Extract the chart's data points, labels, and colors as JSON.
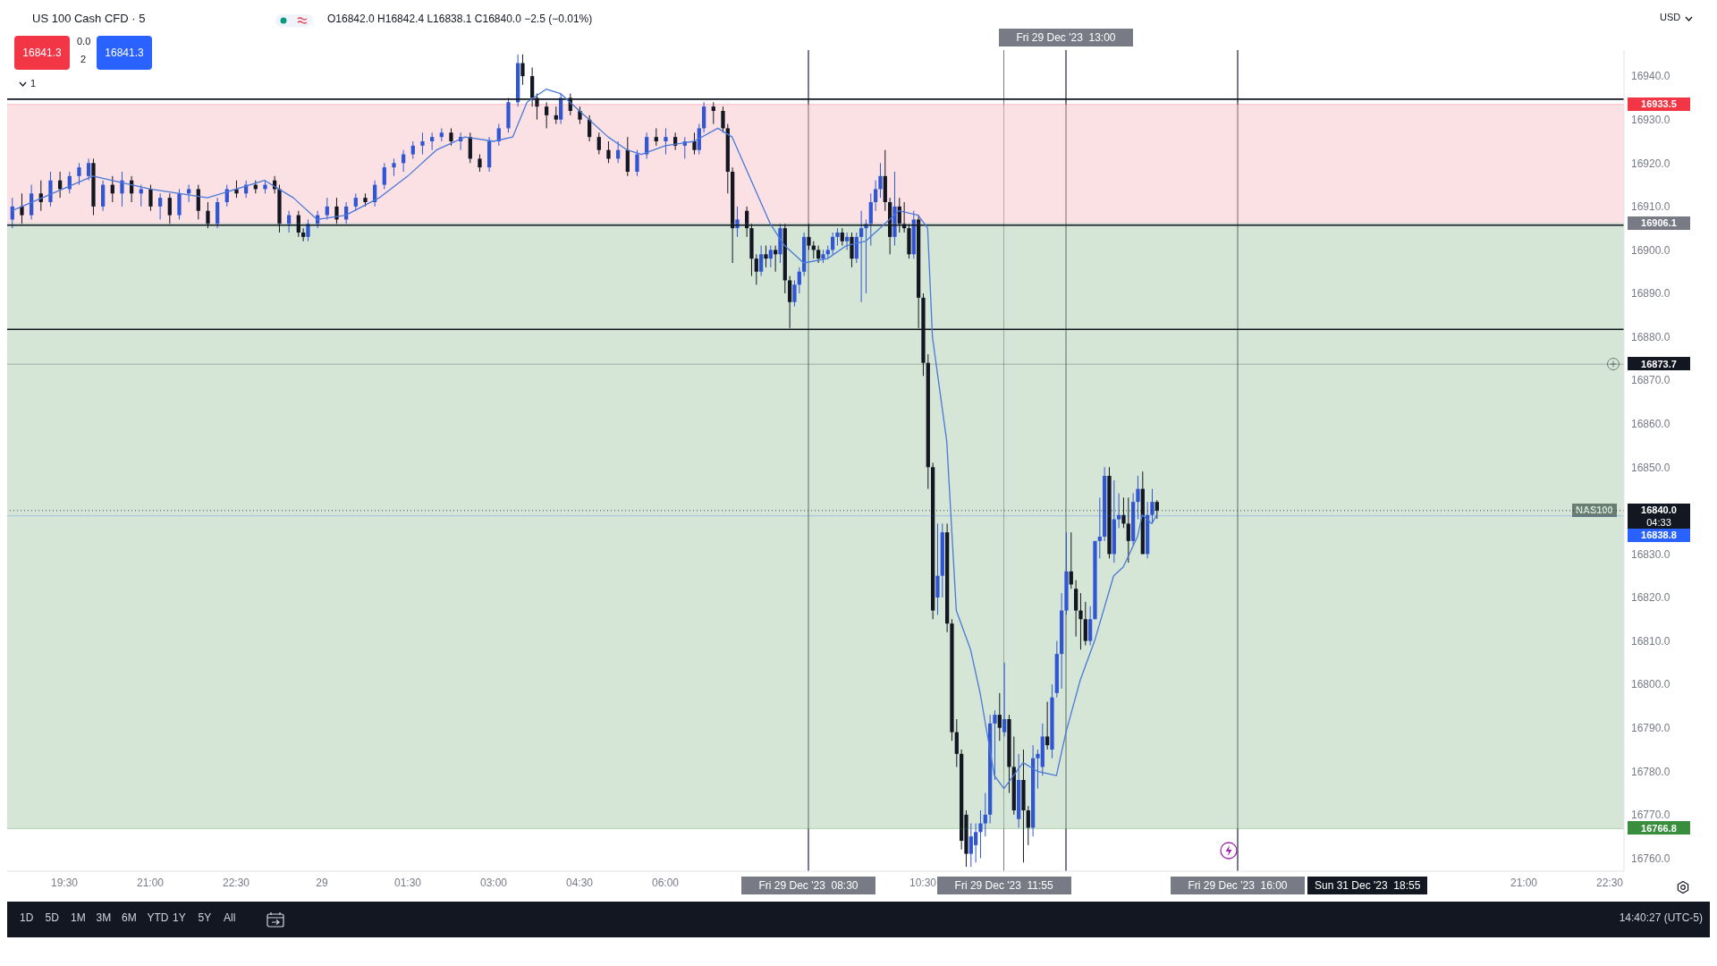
{
  "chart_data": {
    "type": "candlestick",
    "title": "US 100 Cash CFD · 5",
    "subtitle": "O16842.0 H16842.4 L16838.1 C16840.0 −2.5 (−0.01%)",
    "x": [
      "2023-12-28T18:35",
      "2023-12-28T18:45",
      "2023-12-28T18:55",
      "2023-12-28T19:05",
      "2023-12-28T19:15",
      "2023-12-28T19:25",
      "2023-12-28T19:35",
      "2023-12-28T19:45",
      "2023-12-28T19:55",
      "2023-12-28T20:00",
      "2023-12-28T20:10",
      "2023-12-28T20:20",
      "2023-12-28T20:30",
      "2023-12-28T20:40",
      "2023-12-28T20:50",
      "2023-12-28T21:00",
      "2023-12-28T21:10",
      "2023-12-28T21:20",
      "2023-12-28T21:30",
      "2023-12-28T21:40",
      "2023-12-28T21:50",
      "2023-12-28T22:00",
      "2023-12-28T22:10",
      "2023-12-28T22:20",
      "2023-12-28T22:30",
      "2023-12-28T22:40",
      "2023-12-28T22:50",
      "2023-12-28T23:00",
      "2023-12-28T23:10",
      "2023-12-28T23:15",
      "2023-12-28T23:25",
      "2023-12-28T23:35",
      "2023-12-28T23:40",
      "2023-12-28T23:45",
      "2023-12-28T23:55",
      "2023-12-29T00:05",
      "2023-12-29T00:15",
      "2023-12-29T00:25",
      "2023-12-29T00:35",
      "2023-12-29T00:45",
      "2023-12-29T00:55",
      "2023-12-29T01:05",
      "2023-12-29T01:15",
      "2023-12-29T01:25",
      "2023-12-29T01:35",
      "2023-12-29T01:45",
      "2023-12-29T01:55",
      "2023-12-29T02:05",
      "2023-12-29T02:15",
      "2023-12-29T02:25",
      "2023-12-29T02:35",
      "2023-12-29T02:45",
      "2023-12-29T02:55",
      "2023-12-29T03:05",
      "2023-12-29T03:15",
      "2023-12-29T03:25",
      "2023-12-29T03:30",
      "2023-12-29T03:40",
      "2023-12-29T03:45",
      "2023-12-29T03:55",
      "2023-12-29T04:05",
      "2023-12-29T04:10",
      "2023-12-29T04:20",
      "2023-12-29T04:30",
      "2023-12-29T04:40",
      "2023-12-29T04:50",
      "2023-12-29T05:00",
      "2023-12-29T05:10",
      "2023-12-29T05:20",
      "2023-12-29T05:30",
      "2023-12-29T05:40",
      "2023-12-29T05:50",
      "2023-12-29T06:00",
      "2023-12-29T06:10",
      "2023-12-29T06:20",
      "2023-12-29T06:30",
      "2023-12-29T06:35",
      "2023-12-29T06:40",
      "2023-12-29T06:50",
      "2023-12-29T07:00",
      "2023-12-29T07:05",
      "2023-12-29T07:10",
      "2023-12-29T07:15",
      "2023-12-29T07:25",
      "2023-12-29T07:30",
      "2023-12-29T07:35",
      "2023-12-29T07:40",
      "2023-12-29T07:45",
      "2023-12-29T07:50",
      "2023-12-29T07:55",
      "2023-12-29T08:00",
      "2023-12-29T08:05",
      "2023-12-29T08:10",
      "2023-12-29T08:15",
      "2023-12-29T08:20",
      "2023-12-29T08:25",
      "2023-12-29T08:30",
      "2023-12-29T08:35",
      "2023-12-29T08:40",
      "2023-12-29T08:45",
      "2023-12-29T08:50",
      "2023-12-29T08:55",
      "2023-12-29T09:00",
      "2023-12-29T09:05",
      "2023-12-29T09:10",
      "2023-12-29T09:15",
      "2023-12-29T09:20",
      "2023-12-29T09:25",
      "2023-12-29T09:30",
      "2023-12-29T09:35",
      "2023-12-29T09:40",
      "2023-12-29T09:45",
      "2023-12-29T09:50",
      "2023-12-29T09:55",
      "2023-12-29T10:00",
      "2023-12-29T10:05",
      "2023-12-29T10:10",
      "2023-12-29T10:15",
      "2023-12-29T10:20",
      "2023-12-29T10:25",
      "2023-12-29T10:30",
      "2023-12-29T10:35",
      "2023-12-29T10:40",
      "2023-12-29T10:45",
      "2023-12-29T10:50",
      "2023-12-29T10:55",
      "2023-12-29T11:00",
      "2023-12-29T11:05",
      "2023-12-29T11:10",
      "2023-12-29T11:15",
      "2023-12-29T11:20",
      "2023-12-29T11:25",
      "2023-12-29T11:30",
      "2023-12-29T11:35",
      "2023-12-29T11:40",
      "2023-12-29T11:45",
      "2023-12-29T11:50",
      "2023-12-29T11:55",
      "2023-12-29T12:00",
      "2023-12-29T12:05",
      "2023-12-29T12:10",
      "2023-12-29T12:15",
      "2023-12-29T12:20",
      "2023-12-29T12:25",
      "2023-12-29T12:30",
      "2023-12-29T12:35",
      "2023-12-29T12:40",
      "2023-12-29T12:45",
      "2023-12-29T12:50",
      "2023-12-29T12:55",
      "2023-12-29T13:00",
      "2023-12-29T13:05",
      "2023-12-29T13:10",
      "2023-12-29T13:15",
      "2023-12-29T13:20",
      "2023-12-29T13:25",
      "2023-12-29T13:30",
      "2023-12-29T13:35",
      "2023-12-29T13:40",
      "2023-12-29T13:45",
      "2023-12-29T13:50",
      "2023-12-29T13:55",
      "2023-12-29T14:00",
      "2023-12-29T14:05",
      "2023-12-29T14:10",
      "2023-12-29T14:15",
      "2023-12-29T14:20",
      "2023-12-29T14:25",
      "2023-12-29T14:30",
      "2023-12-29T14:35"
    ],
    "ohlc": [
      [
        16907,
        16912,
        16905,
        16910
      ],
      [
        16910,
        16913,
        16906,
        16908
      ],
      [
        16908,
        16915,
        16907,
        16913
      ],
      [
        16913,
        16916,
        16909,
        16911
      ],
      [
        16911,
        16918,
        16910,
        16916
      ],
      [
        16916,
        16918,
        16912,
        16914
      ],
      [
        16914,
        16918,
        16913,
        16917
      ],
      [
        16917,
        16920,
        16915,
        16919
      ],
      [
        16917,
        16921,
        16916,
        16920
      ],
      [
        16920,
        16921,
        16908,
        16910
      ],
      [
        16910,
        16916,
        16909,
        16915
      ],
      [
        16915,
        16917,
        16911,
        16913
      ],
      [
        16913,
        16918,
        16910,
        16916
      ],
      [
        16916,
        16917,
        16911,
        16913
      ],
      [
        16913,
        16915,
        16910,
        16914
      ],
      [
        16914,
        16915,
        16909,
        16910
      ],
      [
        16910,
        16913,
        16907,
        16912
      ],
      [
        16912,
        16913,
        16906,
        16908
      ],
      [
        16908,
        16914,
        16907,
        16913
      ],
      [
        16913,
        16915,
        16911,
        16914
      ],
      [
        16914,
        16915,
        16907,
        16909
      ],
      [
        16909,
        16911,
        16905,
        16906
      ],
      [
        16906,
        16912,
        16905,
        16911
      ],
      [
        16911,
        16915,
        16910,
        16914
      ],
      [
        16914,
        16916,
        16912,
        16913
      ],
      [
        16913,
        16916,
        16912,
        16915
      ],
      [
        16915,
        16916,
        16913,
        16914
      ],
      [
        16914,
        16916,
        16913,
        16915
      ],
      [
        16916,
        16917,
        16913,
        16914
      ],
      [
        16914,
        16915,
        16904,
        16906
      ],
      [
        16906,
        16909,
        16904,
        16908
      ],
      [
        16908,
        16909,
        16903,
        16904
      ],
      [
        16904,
        16905,
        16902,
        16903
      ],
      [
        16903,
        16907,
        16902,
        16906
      ],
      [
        16906,
        16909,
        16905,
        16908
      ],
      [
        16908,
        16912,
        16907,
        16910
      ],
      [
        16910,
        16912,
        16906,
        16907
      ],
      [
        16907,
        16911,
        16906,
        16910
      ],
      [
        16910,
        16913,
        16909,
        16912
      ],
      [
        16912,
        16913,
        16910,
        16911
      ],
      [
        16911,
        16916,
        16910,
        16915
      ],
      [
        16915,
        16920,
        16914,
        16919
      ],
      [
        16919,
        16921,
        16917,
        16920
      ],
      [
        16920,
        16923,
        16918,
        16922
      ],
      [
        16922,
        16925,
        16921,
        16924
      ],
      [
        16924,
        16927,
        16922,
        16925
      ],
      [
        16925,
        16927,
        16923,
        16926
      ],
      [
        16926,
        16928,
        16925,
        16927
      ],
      [
        16927,
        16928,
        16924,
        16925
      ],
      [
        16925,
        16927,
        16923,
        16926
      ],
      [
        16926,
        16927,
        16920,
        16921
      ],
      [
        16921,
        16922,
        16918,
        16919
      ],
      [
        16919,
        16926,
        16918,
        16925
      ],
      [
        16925,
        16929,
        16924,
        16928
      ],
      [
        16928,
        16935,
        16927,
        16934
      ],
      [
        16934,
        16945,
        16933,
        16943
      ],
      [
        16943,
        16945,
        16938,
        16940
      ],
      [
        16940,
        16942,
        16933,
        16935
      ],
      [
        16935,
        16936,
        16930,
        16933
      ],
      [
        16933,
        16934,
        16928,
        16931
      ],
      [
        16931,
        16933,
        16929,
        16930
      ],
      [
        16930,
        16936,
        16929,
        16935
      ],
      [
        16935,
        16936,
        16931,
        16932
      ],
      [
        16932,
        16933,
        16929,
        16930
      ],
      [
        16930,
        16931,
        16925,
        16926
      ],
      [
        16926,
        16927,
        16922,
        16923
      ],
      [
        16923,
        16925,
        16920,
        16921
      ],
      [
        16921,
        16925,
        16920,
        16923
      ],
      [
        16923,
        16926,
        16917,
        16918
      ],
      [
        16918,
        16923,
        16917,
        16922
      ],
      [
        16922,
        16927,
        16921,
        16926
      ],
      [
        16926,
        16928,
        16924,
        16925
      ],
      [
        16925,
        16928,
        16922,
        16926
      ],
      [
        16926,
        16927,
        16923,
        16924
      ],
      [
        16924,
        16926,
        16921,
        16925
      ],
      [
        16925,
        16927,
        16922,
        16923
      ],
      [
        16923,
        16929,
        16922,
        16928
      ],
      [
        16928,
        16934,
        16927,
        16933
      ],
      [
        16933,
        16934,
        16929,
        16932
      ],
      [
        16932,
        16933,
        16927,
        16928
      ],
      [
        16928,
        16929,
        16913,
        16918
      ],
      [
        16918,
        16919,
        16897,
        16905
      ],
      [
        16905,
        16910,
        16903,
        16907
      ],
      [
        16909,
        16910,
        16903,
        16905
      ],
      [
        16905,
        16906,
        16894,
        16898
      ],
      [
        16898,
        16899,
        16892,
        16895
      ],
      [
        16895,
        16901,
        16894,
        16899
      ],
      [
        16899,
        16901,
        16896,
        16898
      ],
      [
        16898,
        16901,
        16896,
        16900
      ],
      [
        16900,
        16901,
        16895,
        16899
      ],
      [
        16899,
        16906,
        16897,
        16905
      ],
      [
        16905,
        16906,
        16890,
        16893
      ],
      [
        16893,
        16894,
        16882,
        16888
      ],
      [
        16888,
        16893,
        16887,
        16892
      ],
      [
        16892,
        16896,
        16890,
        16895
      ],
      [
        16895,
        16904,
        16894,
        16903
      ],
      [
        16903,
        16906,
        16900,
        16901
      ],
      [
        16901,
        16902,
        16898,
        16900
      ],
      [
        16900,
        16901,
        16897,
        16898
      ],
      [
        16898,
        16900,
        16897,
        16899
      ],
      [
        16899,
        16901,
        16898,
        16900
      ],
      [
        16900,
        16904,
        16899,
        16903
      ],
      [
        16903,
        16905,
        16901,
        16904
      ],
      [
        16904,
        16905,
        16901,
        16902
      ],
      [
        16902,
        16904,
        16900,
        16903
      ],
      [
        16903,
        16904,
        16896,
        16898
      ],
      [
        16898,
        16904,
        16897,
        16903
      ],
      [
        16903,
        16909,
        16888,
        16905
      ],
      [
        16905,
        16907,
        16890,
        16906
      ],
      [
        16906,
        16913,
        16901,
        16911
      ],
      [
        16911,
        16916,
        16909,
        16914
      ],
      [
        16914,
        16920,
        16912,
        16917
      ],
      [
        16917,
        16923,
        16909,
        16911
      ],
      [
        16911,
        16912,
        16899,
        16903
      ],
      [
        16903,
        16918,
        16901,
        16910
      ],
      [
        16910,
        16912,
        16904,
        16906
      ],
      [
        16906,
        16911,
        16904,
        16905
      ],
      [
        16905,
        16906,
        16898,
        16899
      ],
      [
        16899,
        16909,
        16898,
        16907
      ],
      [
        16907,
        16908,
        16882,
        16889
      ],
      [
        16889,
        16890,
        16871,
        16874
      ],
      [
        16874,
        16876,
        16845,
        16850
      ],
      [
        16850,
        16851,
        16815,
        16817
      ],
      [
        16820,
        16837,
        16816,
        16825
      ],
      [
        16825,
        16837,
        16820,
        16835
      ],
      [
        16835,
        16837,
        16812,
        16814
      ],
      [
        16814,
        16815,
        16787,
        16789
      ],
      [
        16789,
        16792,
        16781,
        16784
      ],
      [
        16784,
        16785,
        16762,
        16764
      ],
      [
        16770,
        16771,
        16758,
        16761
      ],
      [
        16761,
        16768,
        16758,
        16765
      ],
      [
        16763,
        16768,
        16759,
        16766
      ],
      [
        16766,
        16771,
        16760,
        16768
      ],
      [
        16768,
        16775,
        16765,
        16770
      ],
      [
        16770,
        16793,
        16768,
        16791
      ],
      [
        16791,
        16794,
        16778,
        16793
      ],
      [
        16793,
        16798,
        16787,
        16790
      ],
      [
        16789,
        16805,
        16788,
        16792
      ],
      [
        16792,
        16793,
        16775,
        16781
      ],
      [
        16781,
        16788,
        16770,
        16771
      ],
      [
        16769,
        16784,
        16767,
        16778
      ],
      [
        16778,
        16785,
        16759,
        16771
      ],
      [
        16771,
        16772,
        16763,
        16767
      ],
      [
        16767,
        16786,
        16765,
        16783
      ],
      [
        16783,
        16785,
        16776,
        16784
      ],
      [
        16781,
        16791,
        16779,
        16788
      ],
      [
        16788,
        16796,
        16785,
        16786
      ],
      [
        16785,
        16800,
        16783,
        16797
      ],
      [
        16798,
        16810,
        16797,
        16807
      ],
      [
        16807,
        16821,
        16799,
        16817
      ],
      [
        16817,
        16835,
        16816,
        16826
      ],
      [
        16826,
        16835,
        16822,
        16823
      ],
      [
        16822,
        16824,
        16811,
        16817
      ],
      [
        16817,
        16821,
        16808,
        16815
      ],
      [
        16815,
        16819,
        16809,
        16810
      ],
      [
        16810,
        16818,
        16809,
        16815
      ],
      [
        16815,
        16833,
        16815,
        16833
      ],
      [
        16833,
        16843,
        16829,
        16834
      ],
      [
        16834,
        16850,
        16833,
        16848
      ],
      [
        16848,
        16850,
        16829,
        16830
      ],
      [
        16830,
        16847,
        16828,
        16838
      ],
      [
        16838,
        16844,
        16836,
        16839
      ],
      [
        16839,
        16843,
        16836,
        16837
      ],
      [
        16837,
        16843,
        16828,
        16833
      ],
      [
        16833,
        16844,
        16832,
        16842
      ],
      [
        16842,
        16848,
        16838,
        16845
      ],
      [
        16845,
        16849,
        16830,
        16830
      ],
      [
        16830,
        16842,
        16829,
        16839
      ],
      [
        16839,
        16845,
        16837,
        16842
      ],
      [
        16842.0,
        16842.4,
        16838.1,
        16840.0
      ]
    ],
    "colors": [
      "#3056d3",
      "#131722",
      "#3056d3",
      "#131722",
      "#3056d3",
      "#131722",
      "#3056d3",
      "#3056d3",
      "#3056d3",
      "#131722",
      "#3056d3",
      "#131722",
      "#3056d3",
      "#131722",
      "#3056d3",
      "#131722",
      "#3056d3",
      "#131722",
      "#3056d3",
      "#3056d3",
      "#131722",
      "#131722",
      "#3056d3",
      "#3056d3",
      "#131722",
      "#3056d3",
      "#131722",
      "#3056d3",
      "#131722",
      "#131722",
      "#3056d3",
      "#131722",
      "#131722",
      "#3056d3",
      "#3056d3",
      "#3056d3",
      "#131722",
      "#3056d3",
      "#3056d3",
      "#131722",
      "#3056d3",
      "#3056d3",
      "#3056d3",
      "#3056d3",
      "#3056d3",
      "#3056d3",
      "#3056d3",
      "#3056d3",
      "#131722",
      "#3056d3",
      "#131722",
      "#131722",
      "#3056d3",
      "#3056d3",
      "#3056d3",
      "#3056d3",
      "#131722",
      "#131722",
      "#131722",
      "#131722",
      "#131722",
      "#3056d3",
      "#131722",
      "#131722",
      "#131722",
      "#131722",
      "#131722",
      "#3056d3",
      "#131722",
      "#3056d3",
      "#3056d3",
      "#131722",
      "#3056d3",
      "#131722",
      "#3056d3",
      "#131722",
      "#3056d3",
      "#3056d3",
      "#131722",
      "#131722",
      "#131722",
      "#131722",
      "#3056d3",
      "#131722",
      "#131722",
      "#131722",
      "#3056d3",
      "#131722",
      "#3056d3",
      "#131722",
      "#3056d3",
      "#131722",
      "#131722",
      "#3056d3",
      "#3056d3",
      "#3056d3",
      "#131722",
      "#131722",
      "#131722",
      "#3056d3",
      "#3056d3",
      "#3056d3",
      "#3056d3",
      "#131722",
      "#3056d3",
      "#131722",
      "#3056d3",
      "#3056d3",
      "#3056d3",
      "#3056d3",
      "#3056d3",
      "#3056d3",
      "#131722",
      "#131722",
      "#3056d3",
      "#131722",
      "#131722",
      "#131722",
      "#3056d3",
      "#131722",
      "#131722",
      "#131722",
      "#131722",
      "#3056d3",
      "#3056d3",
      "#131722",
      "#131722",
      "#131722",
      "#131722",
      "#131722",
      "#3056d3",
      "#3056d3",
      "#3056d3",
      "#3056d3",
      "#3056d3",
      "#3056d3",
      "#131722",
      "#3056d3",
      "#131722",
      "#131722",
      "#3056d3",
      "#131722",
      "#131722",
      "#3056d3",
      "#3056d3",
      "#3056d3",
      "#131722",
      "#3056d3",
      "#3056d3",
      "#3056d3",
      "#3056d3",
      "#131722",
      "#131722",
      "#131722",
      "#131722",
      "#3056d3",
      "#3056d3",
      "#3056d3",
      "#3056d3",
      "#131722",
      "#3056d3",
      "#3056d3",
      "#131722",
      "#131722",
      "#3056d3",
      "#3056d3",
      "#131722",
      "#3056d3",
      "#3056d3",
      "#131722"
    ],
    "series": [
      {
        "type": "line",
        "color": "#4a78d8",
        "x": [
          "2023-12-28T18:35",
          "2023-12-28T20:00",
          "2023-12-28T21:00",
          "2023-12-28T22:00",
          "2023-12-28T23:00",
          "2023-12-28T23:30",
          "2023-12-28T23:55",
          "2023-12-29T00:25",
          "2023-12-29T01:00",
          "2023-12-29T01:30",
          "2023-12-29T02:00",
          "2023-12-29T02:30",
          "2023-12-29T03:00",
          "2023-12-29T03:20",
          "2023-12-29T03:35",
          "2023-12-29T03:55",
          "2023-12-29T04:10",
          "2023-12-29T04:30",
          "2023-12-29T05:00",
          "2023-12-29T05:20",
          "2023-12-29T05:35",
          "2023-12-29T06:00",
          "2023-12-29T06:30",
          "2023-12-29T06:55",
          "2023-12-29T07:10",
          "2023-12-29T07:30",
          "2023-12-29T07:50",
          "2023-12-29T08:05",
          "2023-12-29T08:25",
          "2023-12-29T08:50",
          "2023-12-29T09:10",
          "2023-12-29T09:30",
          "2023-12-29T09:50",
          "2023-12-29T10:05",
          "2023-12-29T10:25",
          "2023-12-29T10:35",
          "2023-12-29T10:40",
          "2023-12-29T10:55",
          "2023-12-29T11:05",
          "2023-12-29T11:20",
          "2023-12-29T11:30",
          "2023-12-29T11:45",
          "2023-12-29T11:55",
          "2023-12-29T12:15",
          "2023-12-29T12:30",
          "2023-12-29T12:50",
          "2023-12-29T13:00",
          "2023-12-29T13:15",
          "2023-12-29T13:30",
          "2023-12-29T13:50",
          "2023-12-29T14:00",
          "2023-12-29T14:15",
          "2023-12-29T14:20",
          "2023-12-29T14:30",
          "2023-12-29T14:35"
        ],
        "values": [
          16909,
          16917,
          16914,
          16912,
          16916,
          16912,
          16907,
          16908,
          16912,
          16917,
          16923,
          16926,
          16925,
          16926,
          16934,
          16937,
          16936,
          16932,
          16926,
          16923,
          16922,
          16924,
          16925,
          16928,
          16926,
          16916,
          16906,
          16901,
          16897,
          16898,
          16901,
          16902,
          16906,
          16909,
          16908,
          16905,
          16880,
          16856,
          16817,
          16808,
          16798,
          16779,
          16776,
          16782,
          16780,
          16779,
          16789,
          16801,
          16810,
          16825,
          16827,
          16834,
          16839,
          16837,
          16839
        ]
      }
    ],
    "xlim": [
      "2023-12-28T18:30",
      "2023-12-29T22:45"
    ],
    "xticks": [
      {
        "value": "2023-12-28T19:30",
        "label": "19:30"
      },
      {
        "value": "2023-12-28T21:00",
        "label": "21:00"
      },
      {
        "value": "2023-12-28T22:30",
        "label": "22:30"
      },
      {
        "value": "2023-12-29T00:00",
        "label": "29"
      },
      {
        "value": "2023-12-29T01:30",
        "label": "01:30"
      },
      {
        "value": "2023-12-29T03:00",
        "label": "03:00"
      },
      {
        "value": "2023-12-29T04:30",
        "label": "04:30"
      },
      {
        "value": "2023-12-29T06:00",
        "label": "06:00"
      },
      {
        "value": "2023-12-29T10:30",
        "label": "10:30"
      },
      {
        "value": "2023-12-29T21:00",
        "label": "21:00"
      },
      {
        "value": "2023-12-29T22:30",
        "label": "22:30"
      }
    ],
    "ylim": [
      16757,
      16946
    ],
    "yticks": [
      {
        "value": 16760,
        "label": "16760.0"
      },
      {
        "value": 16770,
        "label": "16770.0"
      },
      {
        "value": 16780,
        "label": "16780.0"
      },
      {
        "value": 16790,
        "label": "16790.0"
      },
      {
        "value": 16800,
        "label": "16800.0"
      },
      {
        "value": 16810,
        "label": "16810.0"
      },
      {
        "value": 16820,
        "label": "16820.0"
      },
      {
        "value": 16830,
        "label": "16830.0"
      },
      {
        "value": 16840,
        "label": null
      },
      {
        "value": 16850,
        "label": "16850.0"
      },
      {
        "value": 16860,
        "label": "16860.0"
      },
      {
        "value": 16870,
        "label": "16870.0"
      },
      {
        "value": 16880,
        "label": "16880.0"
      },
      {
        "value": 16890,
        "label": "16890.0"
      },
      {
        "value": 16900,
        "label": "16900.0"
      },
      {
        "value": 16910,
        "label": "16910.0"
      },
      {
        "value": 16920,
        "label": "16920.0"
      },
      {
        "value": 16930,
        "label": "16930.0"
      },
      {
        "value": 16940,
        "label": "16940.0"
      }
    ],
    "ref_lines": [
      {
        "axis": "y",
        "value": 16934.7,
        "color": "#131722"
      },
      {
        "axis": "y",
        "value": 16905.7,
        "color": "#131722"
      },
      {
        "axis": "y",
        "value": 16881.7,
        "color": "#131722"
      },
      {
        "axis": "y",
        "value": 16933.5,
        "label": "16933.5",
        "color": "#f23645"
      },
      {
        "axis": "y",
        "value": 16906.1,
        "label": "16906.1",
        "color": "#787b86"
      },
      {
        "axis": "y",
        "value": 16873.7,
        "label": "16873.7",
        "color": "#131722"
      },
      {
        "axis": "y",
        "value": 16840.0,
        "label": "16840.0",
        "color": "#131722",
        "line_style": "dotted"
      },
      {
        "axis": "y",
        "value": 16838.8,
        "label": "16838.8",
        "color": "#2962ff"
      },
      {
        "axis": "y",
        "value": 16766.8,
        "label": "16766.8",
        "color": "#388e3c"
      },
      {
        "axis": "x",
        "value": "2023-12-29T08:30",
        "label": "Fri 29 Dec '23  08:30",
        "color": "#787b86"
      },
      {
        "axis": "x",
        "value": "2023-12-29T11:55",
        "label": "Fri 29 Dec '23  11:55",
        "color": "#787b86"
      },
      {
        "axis": "x",
        "value": "2023-12-29T13:00",
        "label": "Fri 29 Dec '23  13:00",
        "color": "#787b86"
      },
      {
        "axis": "x",
        "value": "2023-12-29T16:00",
        "label": "Fri 29 Dec '23  16:00",
        "color": "#787b86"
      }
    ],
    "bands": [
      {
        "axis": "y",
        "from": 16906.1,
        "to": 16933.5,
        "color": "#f7c9cd"
      },
      {
        "axis": "y",
        "from": 16766.8,
        "to": 16906.1,
        "color": "#b3d1b4"
      }
    ],
    "annotations": [
      "16841.3",
      "0.0",
      "2",
      "16841.3",
      "1",
      "NAS100",
      "04:33",
      "USD",
      "Sun 31 Dec '23  18:55",
      "1D",
      "5D",
      "1M",
      "3M",
      "6M",
      "YTD",
      "1Y",
      "5Y",
      "All",
      "14:40:27 (UTC-5)"
    ]
  }
}
